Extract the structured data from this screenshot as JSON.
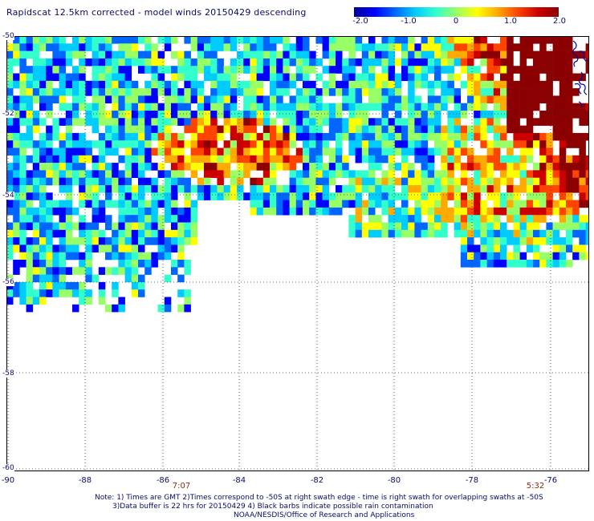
{
  "title": "Rapidscat 12.5km corrected - model winds 20150429 descending",
  "colorbar": {
    "min": -2.0,
    "max": 2.0,
    "tick_labels": [
      "-2.0",
      "-1.0",
      "0",
      "1.0",
      "2.0"
    ],
    "colors": [
      "#00009b",
      "#0000ff",
      "#0066ff",
      "#00ccff",
      "#33ffcc",
      "#99ff66",
      "#ffff00",
      "#ffaa00",
      "#ff4400",
      "#cc0000",
      "#8b0000"
    ]
  },
  "map": {
    "lon_range": [
      -90,
      -75.3
    ],
    "lat_range": [
      -60,
      -50
    ],
    "lon_tick_labels": [
      "-90",
      "-88",
      "-86",
      "-84",
      "-82",
      "-80",
      "-78",
      "-76"
    ],
    "lat_tick_labels": [
      "-50",
      "-52",
      "-54",
      "-56",
      "-58",
      "-60"
    ],
    "grid": "dotted",
    "coastline_color": "#0000aa"
  },
  "swath_times": [
    "7:07",
    "5:32"
  ],
  "footnote": {
    "line1": "Note: 1) Times are GMT 2)Times correspond to -50S at right swath edge - time is right swath for overlapping swaths at -50S",
    "line2": "3)Data buffer is 22 hrs for 20150429 4) Black barbs indicate possible rain contamination",
    "line3": "NOAA/NESDIS/Office of Research and Applications"
  }
}
